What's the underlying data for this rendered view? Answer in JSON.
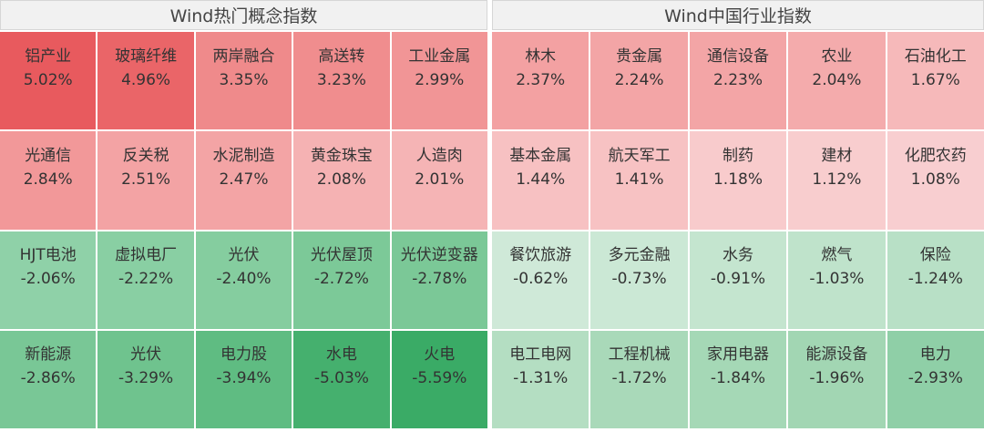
{
  "panels": [
    {
      "title": "Wind热门概念指数",
      "cells": [
        {
          "name": "铝产业",
          "change": "5.02%",
          "color": "#e85a5e"
        },
        {
          "name": "玻璃纤维",
          "change": "4.96%",
          "color": "#ea6568"
        },
        {
          "name": "两岸融合",
          "change": "3.35%",
          "color": "#ef8a8b"
        },
        {
          "name": "高送转",
          "change": "3.23%",
          "color": "#f08d8e"
        },
        {
          "name": "工业金属",
          "change": "2.99%",
          "color": "#f19596"
        },
        {
          "name": "光通信",
          "change": "2.84%",
          "color": "#f29899"
        },
        {
          "name": "反关税",
          "change": "2.51%",
          "color": "#f3a3a4"
        },
        {
          "name": "水泥制造",
          "change": "2.47%",
          "color": "#f3a4a5"
        },
        {
          "name": "黄金珠宝",
          "change": "2.08%",
          "color": "#f5b2b3"
        },
        {
          "name": "人造肉",
          "change": "2.01%",
          "color": "#f5b4b5"
        },
        {
          "name": "HJT电池",
          "change": "-2.06%",
          "color": "#8fd1a8"
        },
        {
          "name": "虚拟电厂",
          "change": "-2.22%",
          "color": "#89cfa3"
        },
        {
          "name": "光伏",
          "change": "-2.40%",
          "color": "#85cd9f"
        },
        {
          "name": "光伏屋顶",
          "change": "-2.72%",
          "color": "#7cc998"
        },
        {
          "name": "光伏逆变器",
          "change": "-2.78%",
          "color": "#7bc897"
        },
        {
          "name": "新能源",
          "change": "-2.86%",
          "color": "#79c796"
        },
        {
          "name": "光伏",
          "change": "-3.29%",
          "color": "#6fc38e"
        },
        {
          "name": "电力股",
          "change": "-3.94%",
          "color": "#5fbc82"
        },
        {
          "name": "水电",
          "change": "-5.03%",
          "color": "#45b06e"
        },
        {
          "name": "火电",
          "change": "-5.59%",
          "color": "#3aab66"
        }
      ]
    },
    {
      "title": "Wind中国行业指数",
      "cells": [
        {
          "name": "林木",
          "change": "2.37%",
          "color": "#f3a1a2"
        },
        {
          "name": "贵金属",
          "change": "2.24%",
          "color": "#f3a5a6"
        },
        {
          "name": "通信设备",
          "change": "2.23%",
          "color": "#f3a5a6"
        },
        {
          "name": "农业",
          "change": "2.04%",
          "color": "#f4abac"
        },
        {
          "name": "石油化工",
          "change": "1.67%",
          "color": "#f6b9ba"
        },
        {
          "name": "基本金属",
          "change": "1.44%",
          "color": "#f7c1c2"
        },
        {
          "name": "航天军工",
          "change": "1.41%",
          "color": "#f7c2c3"
        },
        {
          "name": "制药",
          "change": "1.18%",
          "color": "#f8cbcc"
        },
        {
          "name": "建材",
          "change": "1.12%",
          "color": "#f8cdce"
        },
        {
          "name": "化肥农药",
          "change": "1.08%",
          "color": "#f8ced0"
        },
        {
          "name": "餐饮旅游",
          "change": "-0.62%",
          "color": "#cfe9d8"
        },
        {
          "name": "多元金融",
          "change": "-0.73%",
          "color": "#cbe8d5"
        },
        {
          "name": "水务",
          "change": "-0.91%",
          "color": "#c4e5cf"
        },
        {
          "name": "燃气",
          "change": "-1.03%",
          "color": "#bfe3cb"
        },
        {
          "name": "保险",
          "change": "-1.24%",
          "color": "#b8e0c6"
        },
        {
          "name": "电工电网",
          "change": "-1.31%",
          "color": "#b4dec2"
        },
        {
          "name": "工程机械",
          "change": "-1.72%",
          "color": "#a9d9b9"
        },
        {
          "name": "家用电器",
          "change": "-1.84%",
          "color": "#a5d8b6"
        },
        {
          "name": "能源设备",
          "change": "-1.96%",
          "color": "#a2d6b3"
        },
        {
          "name": "电力",
          "change": "-2.93%",
          "color": "#8fcfa7"
        }
      ]
    }
  ]
}
